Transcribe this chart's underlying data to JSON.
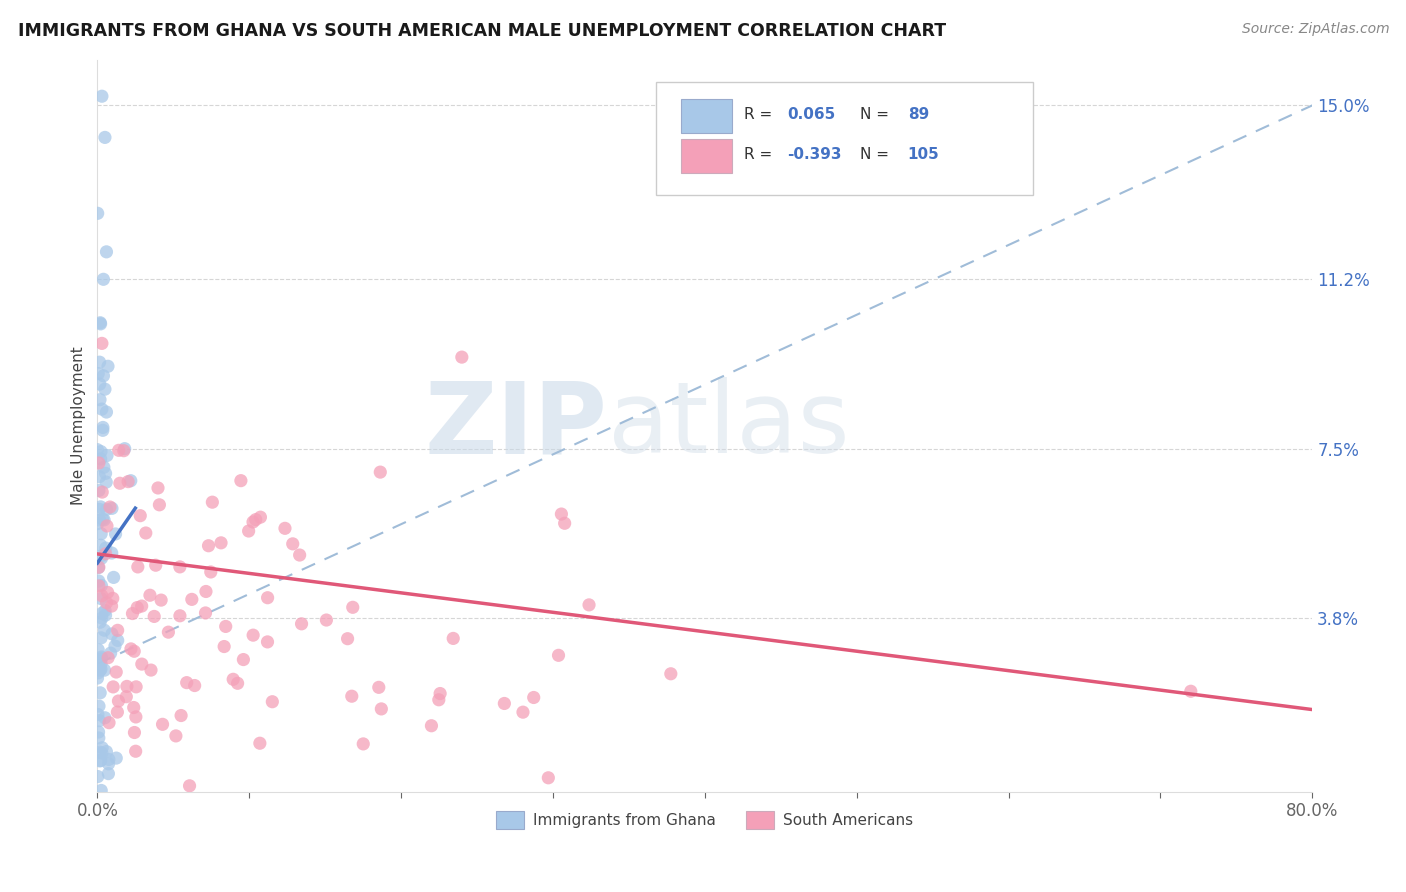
{
  "title": "IMMIGRANTS FROM GHANA VS SOUTH AMERICAN MALE UNEMPLOYMENT CORRELATION CHART",
  "source": "Source: ZipAtlas.com",
  "ylabel": "Male Unemployment",
  "yticks": [
    0.0,
    0.038,
    0.075,
    0.112,
    0.15
  ],
  "ytick_labels": [
    "",
    "3.8%",
    "7.5%",
    "11.2%",
    "15.0%"
  ],
  "color_ghana": "#a8c8e8",
  "color_south": "#f4a0b8",
  "color_ghana_line": "#4472c4",
  "color_south_line": "#e05878",
  "color_dashed": "#a0bcd8",
  "color_axis_label": "#4472c4",
  "color_r_value": "#4472c4",
  "color_grid": "#cccccc",
  "watermark_zip": "ZIP",
  "watermark_atlas": "atlas",
  "xlim": [
    0.0,
    0.8
  ],
  "ylim": [
    0.0,
    0.16
  ],
  "ghana_line_x": [
    0.0,
    0.025
  ],
  "ghana_line_y": [
    0.05,
    0.062
  ],
  "south_line_x": [
    0.0,
    0.8
  ],
  "south_line_y": [
    0.052,
    0.018
  ],
  "dashed_line_x": [
    0.0,
    0.8
  ],
  "dashed_line_y": [
    0.028,
    0.15
  ]
}
